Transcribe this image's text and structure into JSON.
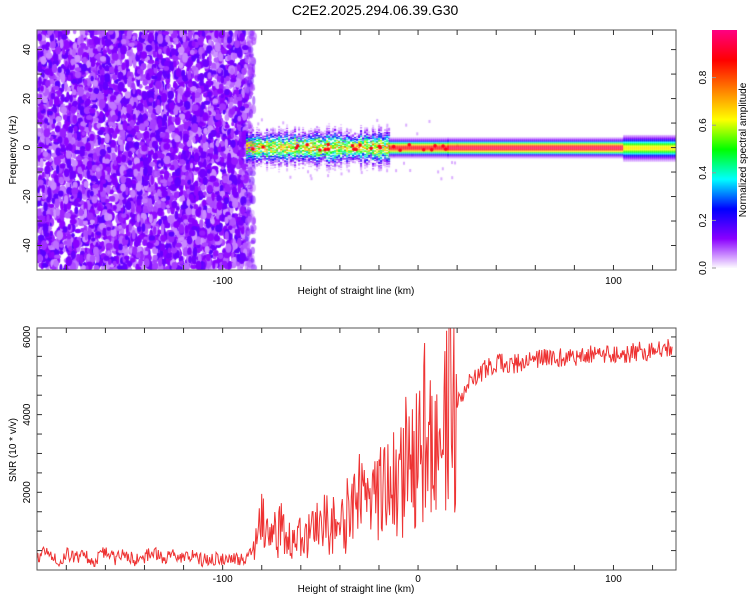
{
  "title": "C2E2.2025.294.06.39.G30",
  "chart_data": [
    {
      "type": "heatmap",
      "name": "spectrogram",
      "xlabel": "Height of straight line (km)",
      "ylabel": "Frequency (Hz)",
      "xlim": [
        -195,
        132
      ],
      "ylim": [
        -50,
        48
      ],
      "xticks": [
        -100,
        100
      ],
      "xtick_labels": [
        "-100",
        "100"
      ],
      "yticks": [
        -40,
        -20,
        0,
        20,
        40
      ],
      "ytick_labels": [
        "-40",
        "-20",
        "0",
        "20",
        "40"
      ],
      "colorbar": {
        "label": "Normalized spectral amplitude",
        "range": [
          0,
          1
        ],
        "ticks": [
          0.0,
          0.2,
          0.4,
          0.6,
          0.8
        ],
        "tick_labels": [
          "0.0",
          "0.2",
          "0.4",
          "0.6",
          "0.8"
        ],
        "colormap": [
          "#ffffff",
          "#8a00ff",
          "#0000ff",
          "#00ffff",
          "#00ff00",
          "#ffff00",
          "#ff8000",
          "#ff0000",
          "#ff0080"
        ]
      },
      "noise_region_km": [
        -195,
        -88
      ],
      "signal_band_center_hz": 0,
      "signal_segments": [
        {
          "x": [
            -88,
            -15
          ],
          "peak_amplitude": 0.75,
          "halfwidth_hz": 5
        },
        {
          "x": [
            -15,
            15
          ],
          "peak_amplitude": 0.9,
          "halfwidth_hz": 3
        },
        {
          "x": [
            15,
            105
          ],
          "peak_amplitude": 0.95,
          "halfwidth_hz": 3
        },
        {
          "x": [
            105,
            132
          ],
          "peak_amplitude": 0.65,
          "halfwidth_hz": 4
        }
      ]
    },
    {
      "type": "line",
      "name": "snr",
      "xlabel": "Height of straight line (km)",
      "ylabel": "SNR (10 * v/v)",
      "xlim": [
        -195,
        132
      ],
      "ylim": [
        0,
        6230
      ],
      "xticks": [
        -100,
        0,
        100
      ],
      "xtick_labels": [
        "-100",
        "0",
        "100"
      ],
      "yticks": [
        2000,
        4000,
        6000
      ],
      "ytick_labels": [
        "2000",
        "4000",
        "6000"
      ],
      "color": "#ee3333",
      "x": [
        -195,
        -190,
        -185,
        -180,
        -175,
        -170,
        -165,
        -160,
        -155,
        -150,
        -145,
        -140,
        -135,
        -130,
        -125,
        -120,
        -115,
        -110,
        -105,
        -100,
        -95,
        -90,
        -85,
        -80,
        -75,
        -70,
        -65,
        -60,
        -55,
        -50,
        -45,
        -40,
        -35,
        -30,
        -25,
        -20,
        -15,
        -10,
        -5,
        0,
        5,
        10,
        15,
        20,
        25,
        30,
        35,
        40,
        45,
        50,
        55,
        60,
        65,
        70,
        75,
        80,
        85,
        90,
        95,
        100,
        105,
        110,
        115,
        120,
        125,
        130
      ],
      "values": [
        300,
        500,
        200,
        400,
        300,
        350,
        250,
        500,
        300,
        400,
        250,
        350,
        450,
        300,
        400,
        300,
        350,
        250,
        300,
        250,
        250,
        300,
        400,
        1200,
        800,
        1100,
        700,
        900,
        1000,
        1100,
        1300,
        1200,
        1500,
        1800,
        1600,
        2000,
        2200,
        2300,
        3000,
        3300,
        3600,
        2600,
        3800,
        4300,
        4800,
        5000,
        5200,
        5300,
        5350,
        5300,
        5400,
        5400,
        5450,
        5500,
        5450,
        5500,
        5500,
        5550,
        5500,
        5600,
        5550,
        5600,
        5650,
        5600,
        5700,
        5750
      ]
    }
  ]
}
